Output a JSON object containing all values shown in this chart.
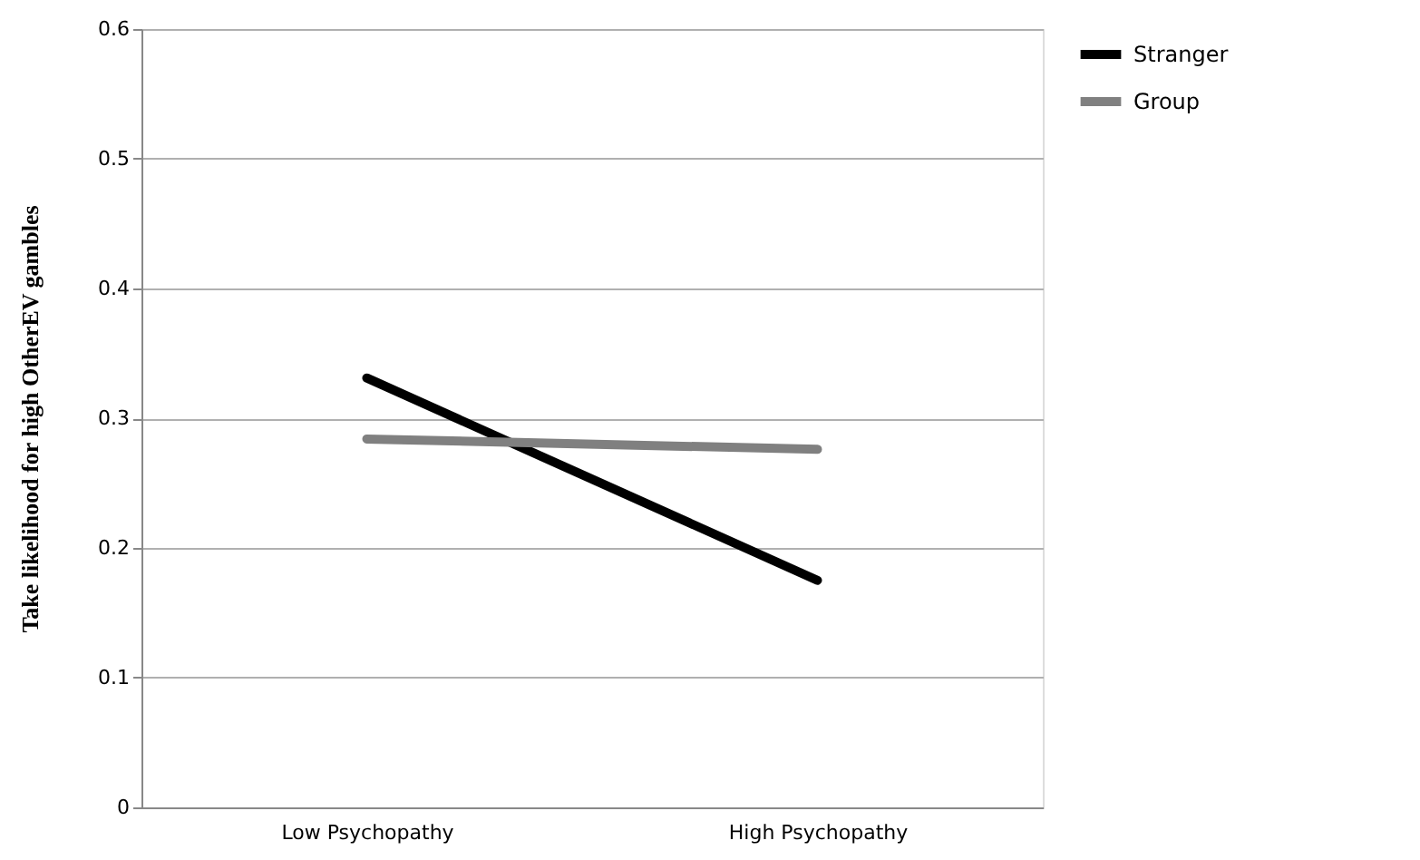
{
  "chart_data": {
    "type": "line",
    "ylabel": "Take likelihood for high OtherEV gambles",
    "categories": [
      "Low Psychopathy",
      "High Psychopathy"
    ],
    "series": [
      {
        "name": "Stranger",
        "color": "#000000",
        "values": [
          0.331,
          0.175
        ]
      },
      {
        "name": "Group",
        "color": "#808080",
        "values": [
          0.284,
          0.276
        ]
      }
    ],
    "ylim": [
      0,
      0.6
    ],
    "yticks": [
      0,
      0.1,
      0.2,
      0.3,
      0.4,
      0.5,
      0.6
    ],
    "grid": "y",
    "legend": "right",
    "marker": "none",
    "line_style": "solid"
  }
}
